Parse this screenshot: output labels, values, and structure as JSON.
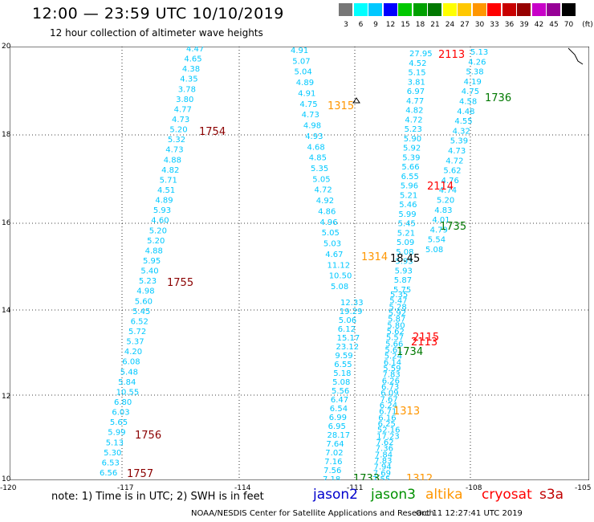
{
  "title": "12:00 — 23:59 UTC 10/10/2019",
  "subtitle": "12 hour collection of altimeter wave heights",
  "legend": {
    "unit": "(ft)",
    "bins": [
      {
        "label": "3",
        "color": "#777777"
      },
      {
        "label": "6",
        "color": "#00ffff"
      },
      {
        "label": "9",
        "color": "#00c8ff"
      },
      {
        "label": "12",
        "color": "#0000ff"
      },
      {
        "label": "15",
        "color": "#00c800"
      },
      {
        "label": "18",
        "color": "#00a000"
      },
      {
        "label": "21",
        "color": "#007800"
      },
      {
        "label": "24",
        "color": "#ffff00"
      },
      {
        "label": "27",
        "color": "#ffc800"
      },
      {
        "label": "30",
        "color": "#ff9600"
      },
      {
        "label": "33",
        "color": "#ff0000"
      },
      {
        "label": "36",
        "color": "#c80000"
      },
      {
        "label": "39",
        "color": "#960000"
      },
      {
        "label": "42",
        "color": "#c800c8"
      },
      {
        "label": "45",
        "color": "#960096"
      },
      {
        "label": "70",
        "color": "#000000"
      }
    ]
  },
  "axes": {
    "lat_labels": [
      "20",
      "18",
      "16",
      "14",
      "12",
      "10"
    ],
    "lon_labels": [
      "-120",
      "-117",
      "-114",
      "-111",
      "-108",
      "-105"
    ]
  },
  "note": "note: 1) Time is in UTC; 2) SWH is in feet",
  "satellites": [
    {
      "name": "jason2",
      "color": "#0000cc"
    },
    {
      "name": "jason3",
      "color": "#009000"
    },
    {
      "name": "altika",
      "color": "#ff9600"
    },
    {
      "name": "cryosat",
      "color": "#ff0000"
    },
    {
      "name": "s3a",
      "color": "#c00000"
    }
  ],
  "credit": "NOAA/NESDIS Center for Satellite Applications and Research",
  "timestamp": "Oct 11 12:27:41 UTC 2019",
  "tracks": {
    "track_1": [
      "4.47",
      "4.65",
      "4.38",
      "4.35",
      "3.78",
      "3.80",
      "4.77",
      "4.73",
      "5.20",
      "5.32",
      "4.73",
      "4.88",
      "4.82",
      "5.71",
      "4.51",
      "4.89",
      "5.93",
      "4.60",
      "5.20",
      "5.20",
      "4.88",
      "5.95",
      "5.40",
      "5.23",
      "4.98",
      "5.60",
      "5.45",
      "6.52",
      "5.72",
      "5.37",
      "4.20",
      "6.08",
      "5.48",
      "5.84",
      "10.55",
      "6.80",
      "6.03",
      "5.65",
      "5.99",
      "5.13",
      "5.30",
      "6.53",
      "6.56"
    ],
    "track_2": [
      "4.91",
      "5.07",
      "5.04",
      "4.89",
      "4.91",
      "4.75",
      "4.73",
      "4.98",
      "4.93",
      "4.68",
      "4.85",
      "5.35",
      "5.05",
      "4.72",
      "4.92",
      "4.86",
      "4.96",
      "5.05",
      "5.03",
      "4.67",
      "11.12",
      "10.50",
      "5.08"
    ],
    "track_3": [
      "27.95",
      "4.52",
      "5.15",
      "3.81",
      "6.97",
      "4.77",
      "4.82",
      "4.72",
      "5.23",
      "5.90",
      "5.92",
      "5.39",
      "5.66",
      "6.55",
      "5.96",
      "5.21",
      "5.46",
      "5.99",
      "5.45",
      "5.21",
      "5.09",
      "5.08",
      "5.93",
      "5.93",
      "5.87",
      "5.75"
    ],
    "track_4": [
      "5.13",
      "4.26",
      "5.38",
      "4.19",
      "4.75",
      "4.58",
      "4.48",
      "4.55",
      "4.32",
      "5.39",
      "4.73",
      "4.72",
      "5.62",
      "4.76",
      "4.74",
      "5.20",
      "4.83",
      "4.01",
      "4.79",
      "5.54",
      "5.08"
    ],
    "track_5": [
      "12.33",
      "19.29",
      "5.06",
      "6.12",
      "15.17",
      "23.12",
      "9.59",
      "6.55",
      "5.18",
      "5.08",
      "5.56",
      "6.47",
      "6.54",
      "6.99",
      "6.95",
      "28.17",
      "7.64",
      "7.02",
      "7.16",
      "7.56",
      "7.18"
    ],
    "track_6": [
      "5.35",
      "5.47",
      "5.28",
      "5.92",
      "5.87",
      "5.80",
      "5.62",
      "5.57",
      "5.66",
      "5.61",
      "5.24",
      "6.14",
      "5.59",
      "7.83",
      "6.26",
      "6.73",
      "6.09",
      "7.67",
      "6.24",
      "6.71",
      "6.16",
      "6.25",
      "52.16",
      "17.23",
      "7.62",
      "7.36",
      "7.84",
      "7.83",
      "7.94",
      "7.69",
      "7.55"
    ]
  },
  "times": [
    {
      "label": "1754",
      "color": "#8b0000"
    },
    {
      "label": "1755",
      "color": "#8b0000"
    },
    {
      "label": "1756",
      "color": "#8b0000"
    },
    {
      "label": "1757",
      "color": "#8b0000"
    },
    {
      "label": "1315",
      "color": "#ff9600"
    },
    {
      "label": "1314",
      "color": "#ff9600"
    },
    {
      "label": "1313",
      "color": "#ff9600"
    },
    {
      "label": "1312",
      "color": "#ff9600"
    },
    {
      "label": "2113",
      "color": "#ff0000"
    },
    {
      "label": "2114",
      "color": "#ff0000"
    },
    {
      "label": "2115",
      "color": "#ff0000"
    },
    {
      "label": "2113",
      "color": "#ff0000"
    },
    {
      "label": "1736",
      "color": "#007800"
    },
    {
      "label": "1735",
      "color": "#007800"
    },
    {
      "label": "1734",
      "color": "#007800"
    },
    {
      "label": "1733",
      "color": "#007800"
    },
    {
      "label": "18.45",
      "color": "#000000"
    }
  ]
}
